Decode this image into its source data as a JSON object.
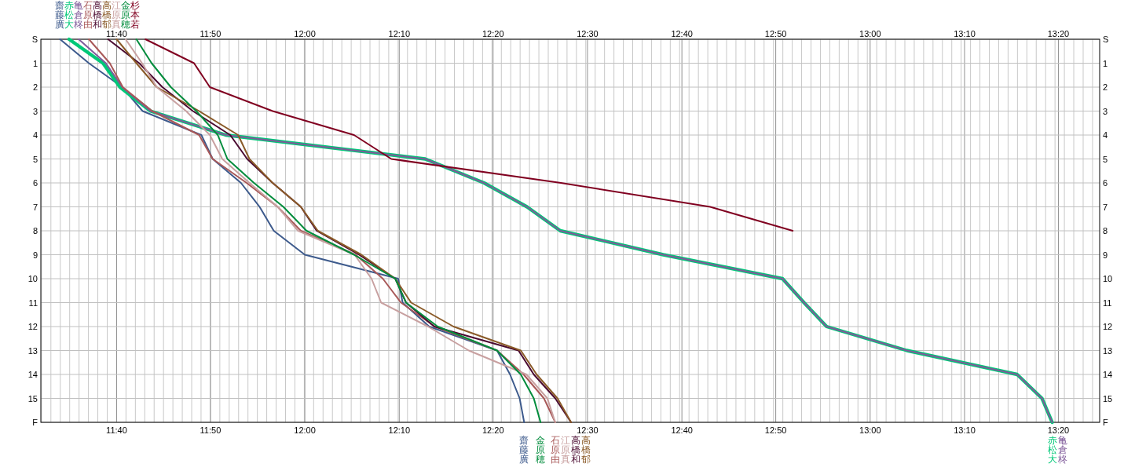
{
  "chart_data": {
    "type": "line",
    "xlim": [
      11.533,
      13.406
    ],
    "x2lim": [
      11.533,
      13.406
    ],
    "xticks": [
      {
        "value": 11.667,
        "label": "11:40"
      },
      {
        "value": 11.833,
        "label": "11:50"
      },
      {
        "value": 12,
        "label": "12:00"
      },
      {
        "value": 12.167,
        "label": "12:10"
      },
      {
        "value": 12.333,
        "label": "12:20"
      },
      {
        "value": 12.5,
        "label": "12:30"
      },
      {
        "value": 12.667,
        "label": "12:40"
      },
      {
        "value": 12.833,
        "label": "12:50"
      },
      {
        "value": 13,
        "label": "13:00"
      },
      {
        "value": 13.167,
        "label": "13:10"
      },
      {
        "value": 13.333,
        "label": "13:20"
      }
    ],
    "x2ticks": [
      {
        "value": 11.667,
        "label": "11:40"
      },
      {
        "value": 11.833,
        "label": "11:50"
      },
      {
        "value": 12,
        "label": "12:00"
      },
      {
        "value": 12.167,
        "label": "12:10"
      },
      {
        "value": 12.333,
        "label": "12:20"
      },
      {
        "value": 12.5,
        "label": "12:30"
      },
      {
        "value": 12.667,
        "label": "12:40"
      },
      {
        "value": 12.833,
        "label": "12:50"
      },
      {
        "value": 13,
        "label": "13:00"
      },
      {
        "value": 13.167,
        "label": "13:10"
      },
      {
        "value": 13.333,
        "label": "13:20"
      }
    ],
    "ylim": [
      16,
      0
    ],
    "y2lim": [
      16,
      0
    ],
    "yticks": [
      {
        "value": 0,
        "label": "S"
      },
      1,
      2,
      3,
      4,
      5,
      6,
      7,
      8,
      9,
      10,
      11,
      12,
      13,
      14,
      15,
      {
        "value": 16,
        "label": "F"
      }
    ],
    "y2ticks": [
      {
        "value": 0,
        "label": "S"
      },
      1,
      2,
      3,
      4,
      5,
      6,
      7,
      8,
      9,
      10,
      11,
      12,
      13,
      14,
      15,
      {
        "value": 16,
        "label": "F"
      }
    ],
    "grid": true,
    "legend": "top left",
    "series": [
      {
        "name": "齋藤廣",
        "color": "#3d5a8c",
        "x": [
          11.567,
          11.618,
          11.677,
          11.713,
          11.817,
          11.837,
          11.887,
          11.92,
          11.945,
          12.0,
          12.165,
          12.173,
          12.22,
          12.34,
          12.363,
          12.38,
          12.388
        ],
        "values": [
          0,
          1,
          2,
          3,
          4,
          5,
          6,
          7,
          8,
          9,
          10,
          11,
          12,
          13,
          14,
          15,
          16
        ]
      },
      {
        "name": "赤松大",
        "color": "#00c878",
        "x": [
          11.583,
          11.643,
          11.673,
          11.727,
          11.86,
          12.213,
          12.317,
          12.393,
          12.452,
          12.634,
          12.845,
          12.883,
          12.923,
          13.065,
          13.26,
          13.304,
          13.322
        ],
        "values": [
          0,
          1,
          2,
          3,
          4,
          5,
          6,
          7,
          8,
          9,
          10,
          11,
          12,
          13,
          14,
          15,
          16
        ]
      },
      {
        "name": "亀倉柊",
        "color": "#7f5a9a",
        "x": [
          11.6,
          11.648,
          11.677,
          11.727,
          11.86,
          12.213,
          12.317,
          12.393,
          12.452,
          12.634,
          12.845,
          12.883,
          12.923,
          13.065,
          13.26,
          13.304,
          13.322
        ],
        "values": [
          0,
          1,
          2,
          3,
          4,
          5,
          6,
          7,
          8,
          9,
          10,
          11,
          12,
          13,
          14,
          15,
          16
        ]
      },
      {
        "name": "石原由",
        "color": "#a85858",
        "x": [
          11.618,
          11.655,
          11.678,
          11.73,
          11.813,
          11.837,
          11.897,
          11.952,
          11.993,
          12.09,
          12.138,
          12.17,
          12.23,
          12.34,
          12.387,
          12.423,
          12.443
        ],
        "values": [
          0,
          1,
          2,
          3,
          4,
          5,
          6,
          7,
          8,
          9,
          10,
          11,
          12,
          13,
          14,
          15,
          16
        ]
      },
      {
        "name": "高橋和",
        "color": "#4a0a30",
        "x": [
          11.652,
          11.707,
          11.748,
          11.802,
          11.868,
          11.898,
          11.943,
          11.993,
          12.021,
          12.096,
          12.16,
          12.179,
          12.229,
          12.378,
          12.405,
          12.443,
          12.471
        ],
        "values": [
          0,
          1,
          2,
          3,
          4,
          5,
          6,
          7,
          8,
          9,
          10,
          11,
          12,
          13,
          14,
          15,
          16
        ]
      },
      {
        "name": "高橋郁",
        "color": "#8a5a28",
        "x": [
          11.667,
          11.702,
          11.738,
          11.813,
          11.882,
          11.902,
          11.943,
          11.993,
          12.023,
          12.1,
          12.16,
          12.188,
          12.263,
          12.382,
          12.41,
          12.447,
          12.471
        ],
        "values": [
          0,
          1,
          2,
          3,
          4,
          5,
          6,
          7,
          8,
          9,
          10,
          11,
          12,
          13,
          14,
          15,
          16
        ]
      },
      {
        "name": "江原真",
        "color": "#c8a0a0",
        "x": [
          11.683,
          11.712,
          11.738,
          11.79,
          11.832,
          11.854,
          11.902,
          11.952,
          11.988,
          12.088,
          12.118,
          12.135,
          12.218,
          12.29,
          12.392,
          12.429,
          12.443
        ],
        "values": [
          0,
          1,
          2,
          3,
          4,
          5,
          6,
          7,
          8,
          9,
          10,
          11,
          12,
          13,
          14,
          15,
          16
        ]
      },
      {
        "name": "金原穂",
        "color": "#008c3c",
        "x": [
          11.702,
          11.729,
          11.763,
          11.808,
          11.846,
          11.863,
          11.91,
          11.962,
          12.003,
          12.087,
          12.16,
          12.179,
          12.235,
          12.34,
          12.382,
          12.405,
          12.417
        ],
        "values": [
          0,
          1,
          2,
          3,
          4,
          5,
          6,
          7,
          8,
          9,
          10,
          11,
          12,
          13,
          14,
          15,
          16
        ]
      },
      {
        "name": "杉本若",
        "color": "#800020",
        "x": [
          11.718,
          11.804,
          11.832,
          11.943,
          12.087,
          12.153,
          12.453,
          12.717,
          12.863
        ],
        "values": [
          0,
          1,
          2,
          3,
          4,
          5,
          6,
          7,
          8
        ]
      }
    ]
  }
}
